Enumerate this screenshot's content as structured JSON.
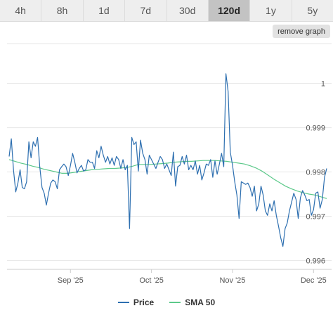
{
  "timeframe_tabs": [
    {
      "label": "4h",
      "active": false
    },
    {
      "label": "8h",
      "active": false
    },
    {
      "label": "1d",
      "active": false
    },
    {
      "label": "7d",
      "active": false
    },
    {
      "label": "30d",
      "active": false
    },
    {
      "label": "120d",
      "active": true
    },
    {
      "label": "1y",
      "active": false
    },
    {
      "label": "5y",
      "active": false
    }
  ],
  "remove_graph_label": "remove graph",
  "colors": {
    "price": "#2d6fb0",
    "sma": "#5cc98a",
    "grid": "#e6e6e6"
  },
  "legend": {
    "price_label": "Price",
    "sma_label": "SMA 50"
  },
  "chart_data": {
    "type": "line",
    "x_ticks": [
      "Sep '25",
      "Oct '25",
      "Nov '25",
      "Dec '25"
    ],
    "y_ticks": [
      {
        "value": 1.0,
        "label": "1"
      },
      {
        "value": 0.999,
        "label": "0.999"
      },
      {
        "value": 0.998,
        "label": "0.998"
      },
      {
        "value": 0.997,
        "label": "0.997"
      },
      {
        "value": 0.996,
        "label": "0.996"
      }
    ],
    "ylim": [
      0.9958,
      1.0009
    ],
    "series": [
      {
        "name": "Price",
        "values": [
          0.99835,
          0.99875,
          0.99805,
          0.99755,
          0.99775,
          0.99805,
          0.99765,
          0.99762,
          0.99778,
          0.99868,
          0.99832,
          0.99868,
          0.99858,
          0.99878,
          0.99812,
          0.99765,
          0.99752,
          0.99725,
          0.99752,
          0.99775,
          0.99782,
          0.99778,
          0.99762,
          0.99805,
          0.99812,
          0.99818,
          0.99812,
          0.99792,
          0.99815,
          0.99842,
          0.99822,
          0.99798,
          0.99808,
          0.99815,
          0.99802,
          0.99805,
          0.99828,
          0.99822,
          0.99822,
          0.99808,
          0.99848,
          0.99832,
          0.99858,
          0.99838,
          0.99822,
          0.99835,
          0.99818,
          0.99832,
          0.99815,
          0.99835,
          0.99828,
          0.99808,
          0.99828,
          0.99805,
          0.99815,
          0.99672,
          0.99878,
          0.99862,
          0.99868,
          0.99802,
          0.99872,
          0.99842,
          0.99828,
          0.99795,
          0.99838,
          0.99828,
          0.99818,
          0.99808,
          0.99822,
          0.99835,
          0.99828,
          0.99808,
          0.99818,
          0.99805,
          0.99792,
          0.99845,
          0.99768,
          0.99812,
          0.99815,
          0.99835,
          0.99818,
          0.99838,
          0.99805,
          0.99815,
          0.99805,
          0.99825,
          0.99795,
          0.99815,
          0.99782,
          0.99798,
          0.99818,
          0.99815,
          0.99828,
          0.99788,
          0.99825,
          0.99795,
          0.99818,
          0.99842,
          0.99812,
          1.00022,
          0.99982,
          0.99845,
          0.99815,
          0.99778,
          0.99748,
          0.99695,
          0.99778,
          0.99775,
          0.99772,
          0.99775,
          0.99765,
          0.99745,
          0.99768,
          0.99712,
          0.99728,
          0.99768,
          0.99748,
          0.99712,
          0.99702,
          0.99728,
          0.99712,
          0.99735,
          0.99702,
          0.99678,
          0.99652,
          0.99632,
          0.99672,
          0.99685,
          0.99712,
          0.99732,
          0.99752,
          0.99738,
          0.99695,
          0.99742,
          0.99758,
          0.99748,
          0.99735,
          0.99738,
          0.99702,
          0.99715,
          0.99752,
          0.99755,
          0.99718,
          0.99738,
          0.99788,
          0.99808
        ]
      },
      {
        "name": "SMA 50",
        "values": [
          0.99828,
          0.99824,
          0.9982,
          0.99817,
          0.99813,
          0.9981,
          0.99806,
          0.99803,
          0.998,
          0.99797,
          0.99797,
          0.99799,
          0.99801,
          0.99803,
          0.99805,
          0.99806,
          0.99807,
          0.99808,
          0.99808,
          0.99809,
          0.9981,
          0.99813,
          0.99817,
          0.99817,
          0.99817,
          0.99818,
          0.99819,
          0.9982,
          0.99822,
          0.99823,
          0.99824,
          0.99824,
          0.99825,
          0.99826,
          0.99826,
          0.99826,
          0.99825,
          0.99824,
          0.99822,
          0.9982,
          0.99818,
          0.99814,
          0.99809,
          0.99802,
          0.99793,
          0.99784,
          0.99776,
          0.99768,
          0.99762,
          0.99757,
          0.99753,
          0.9975,
          0.99748,
          0.99744,
          0.9974
        ]
      }
    ]
  }
}
